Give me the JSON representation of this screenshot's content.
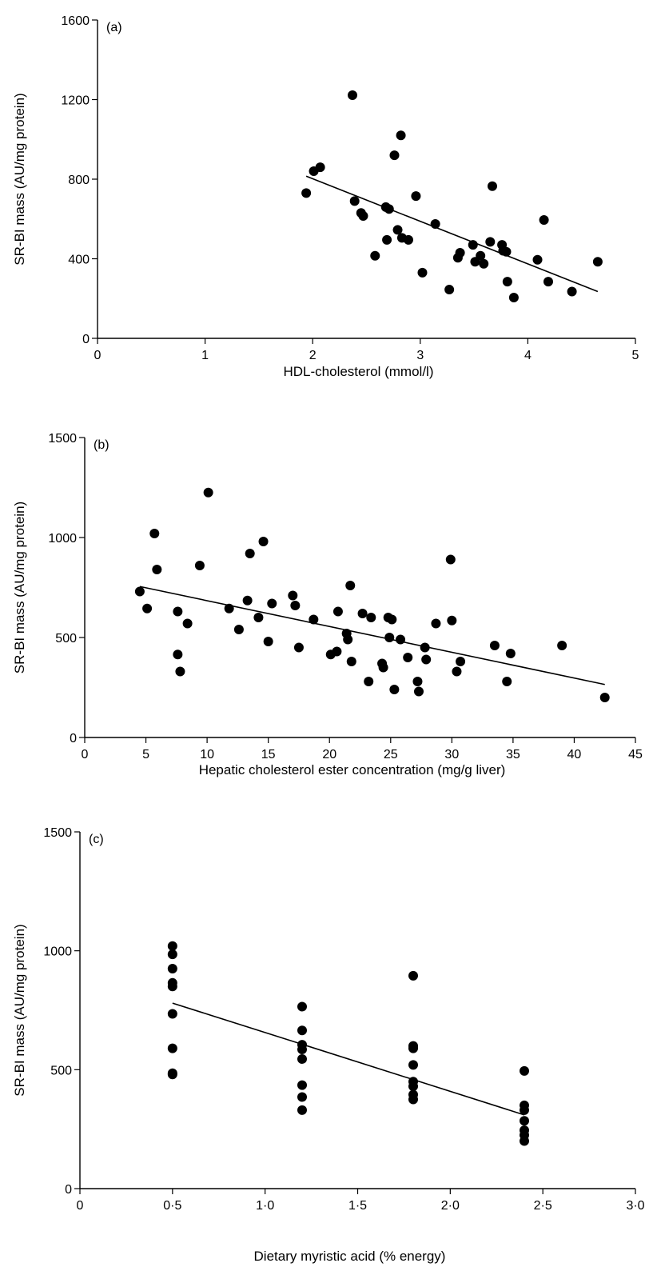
{
  "chart_data": [
    {
      "type": "scatter",
      "panel_label": "(a)",
      "xlabel": "HDL-cholesterol (mmol/l)",
      "ylabel": "SR-BI mass (AU/mg protein)",
      "xlim": [
        0,
        5
      ],
      "ylim": [
        0,
        1600
      ],
      "xticks": [
        0,
        1,
        2,
        3,
        4,
        5
      ],
      "xtick_labels": [
        "0",
        "1",
        "2",
        "3",
        "4",
        "5"
      ],
      "yticks": [
        0,
        400,
        800,
        1200,
        1600
      ],
      "ytick_labels": [
        "0",
        "400",
        "800",
        "1200",
        "1600"
      ],
      "points": [
        [
          1.94,
          730
        ],
        [
          2.01,
          840
        ],
        [
          2.07,
          860
        ],
        [
          2.37,
          1222
        ],
        [
          2.39,
          690
        ],
        [
          2.45,
          630
        ],
        [
          2.47,
          615
        ],
        [
          2.58,
          415
        ],
        [
          2.68,
          660
        ],
        [
          2.69,
          495
        ],
        [
          2.71,
          650
        ],
        [
          2.76,
          920
        ],
        [
          2.79,
          545
        ],
        [
          2.82,
          1020
        ],
        [
          2.83,
          505
        ],
        [
          2.89,
          495
        ],
        [
          2.96,
          715
        ],
        [
          3.02,
          330
        ],
        [
          3.14,
          575
        ],
        [
          3.27,
          245
        ],
        [
          3.35,
          405
        ],
        [
          3.37,
          430
        ],
        [
          3.49,
          470
        ],
        [
          3.51,
          385
        ],
        [
          3.56,
          415
        ],
        [
          3.59,
          375
        ],
        [
          3.65,
          485
        ],
        [
          3.67,
          765
        ],
        [
          3.76,
          470
        ],
        [
          3.77,
          440
        ],
        [
          3.8,
          435
        ],
        [
          3.81,
          285
        ],
        [
          3.87,
          205
        ],
        [
          4.09,
          395
        ],
        [
          4.15,
          595
        ],
        [
          4.19,
          285
        ],
        [
          4.41,
          235
        ],
        [
          4.65,
          385
        ]
      ],
      "fit_line": [
        [
          1.94,
          815
        ],
        [
          4.65,
          235
        ]
      ]
    },
    {
      "type": "scatter",
      "panel_label": "(b)",
      "xlabel": "Hepatic cholesterol ester concentration (mg/g liver)",
      "ylabel": "SR-BI mass (AU/mg protein)",
      "xlim": [
        0,
        45
      ],
      "ylim": [
        0,
        1500
      ],
      "xticks": [
        0,
        5,
        10,
        15,
        20,
        25,
        30,
        35,
        40,
        45
      ],
      "xtick_labels": [
        "0",
        "5",
        "10",
        "15",
        "20",
        "25",
        "30",
        "35",
        "40",
        "45"
      ],
      "yticks": [
        0,
        500,
        1000,
        1500
      ],
      "ytick_labels": [
        "0",
        "500",
        "1000",
        "1500"
      ],
      "points": [
        [
          4.5,
          730
        ],
        [
          5.1,
          645
        ],
        [
          5.7,
          1020
        ],
        [
          5.9,
          840
        ],
        [
          7.6,
          630
        ],
        [
          7.6,
          415
        ],
        [
          7.8,
          330
        ],
        [
          8.4,
          570
        ],
        [
          9.4,
          860
        ],
        [
          10.1,
          1225
        ],
        [
          11.8,
          645
        ],
        [
          12.6,
          540
        ],
        [
          13.3,
          685
        ],
        [
          13.5,
          920
        ],
        [
          14.2,
          600
        ],
        [
          14.6,
          980
        ],
        [
          15.0,
          480
        ],
        [
          15.3,
          670
        ],
        [
          17.0,
          710
        ],
        [
          17.2,
          660
        ],
        [
          17.5,
          450
        ],
        [
          18.7,
          590
        ],
        [
          20.1,
          415
        ],
        [
          20.6,
          430
        ],
        [
          20.7,
          630
        ],
        [
          21.4,
          520
        ],
        [
          21.5,
          490
        ],
        [
          21.7,
          760
        ],
        [
          21.8,
          380
        ],
        [
          22.7,
          620
        ],
        [
          23.2,
          280
        ],
        [
          23.4,
          600
        ],
        [
          24.3,
          370
        ],
        [
          24.4,
          350
        ],
        [
          24.8,
          600
        ],
        [
          24.9,
          500
        ],
        [
          25.1,
          590
        ],
        [
          25.3,
          240
        ],
        [
          25.8,
          490
        ],
        [
          26.4,
          400
        ],
        [
          27.2,
          280
        ],
        [
          27.3,
          230
        ],
        [
          27.8,
          450
        ],
        [
          27.9,
          390
        ],
        [
          28.7,
          570
        ],
        [
          29.9,
          890
        ],
        [
          30.0,
          585
        ],
        [
          30.4,
          330
        ],
        [
          30.7,
          380
        ],
        [
          33.5,
          460
        ],
        [
          34.5,
          280
        ],
        [
          34.8,
          420
        ],
        [
          39.0,
          460
        ],
        [
          42.5,
          200
        ]
      ],
      "fit_line": [
        [
          4.5,
          755
        ],
        [
          42.5,
          265
        ]
      ]
    },
    {
      "type": "scatter",
      "panel_label": "(c)",
      "xlabel": "Dietary myristic acid (% energy)",
      "ylabel": "SR-BI mass (AU/mg protein)",
      "xlim": [
        0,
        3.0
      ],
      "ylim": [
        0,
        1500
      ],
      "xticks": [
        0,
        0.5,
        1.0,
        1.5,
        2.0,
        2.5,
        3.0
      ],
      "xtick_labels": [
        "0",
        "0·5",
        "1·0",
        "1·5",
        "2·0",
        "2·5",
        "3·0"
      ],
      "yticks": [
        0,
        500,
        1000,
        1500
      ],
      "ytick_labels": [
        "0",
        "500",
        "1000",
        "1500"
      ],
      "points": [
        [
          0.5,
          1020
        ],
        [
          0.5,
          985
        ],
        [
          0.5,
          925
        ],
        [
          0.5,
          865
        ],
        [
          0.5,
          850
        ],
        [
          0.5,
          735
        ],
        [
          0.5,
          590
        ],
        [
          0.5,
          485
        ],
        [
          0.5,
          480
        ],
        [
          1.2,
          765
        ],
        [
          1.2,
          665
        ],
        [
          1.2,
          605
        ],
        [
          1.2,
          585
        ],
        [
          1.2,
          545
        ],
        [
          1.2,
          435
        ],
        [
          1.2,
          385
        ],
        [
          1.2,
          330
        ],
        [
          1.8,
          895
        ],
        [
          1.8,
          600
        ],
        [
          1.8,
          590
        ],
        [
          1.8,
          520
        ],
        [
          1.8,
          450
        ],
        [
          1.8,
          430
        ],
        [
          1.8,
          395
        ],
        [
          1.8,
          375
        ],
        [
          2.4,
          495
        ],
        [
          2.4,
          350
        ],
        [
          2.4,
          330
        ],
        [
          2.4,
          285
        ],
        [
          2.4,
          245
        ],
        [
          2.4,
          225
        ],
        [
          2.4,
          200
        ]
      ],
      "fit_line": [
        [
          0.5,
          780
        ],
        [
          2.4,
          310
        ]
      ]
    }
  ]
}
